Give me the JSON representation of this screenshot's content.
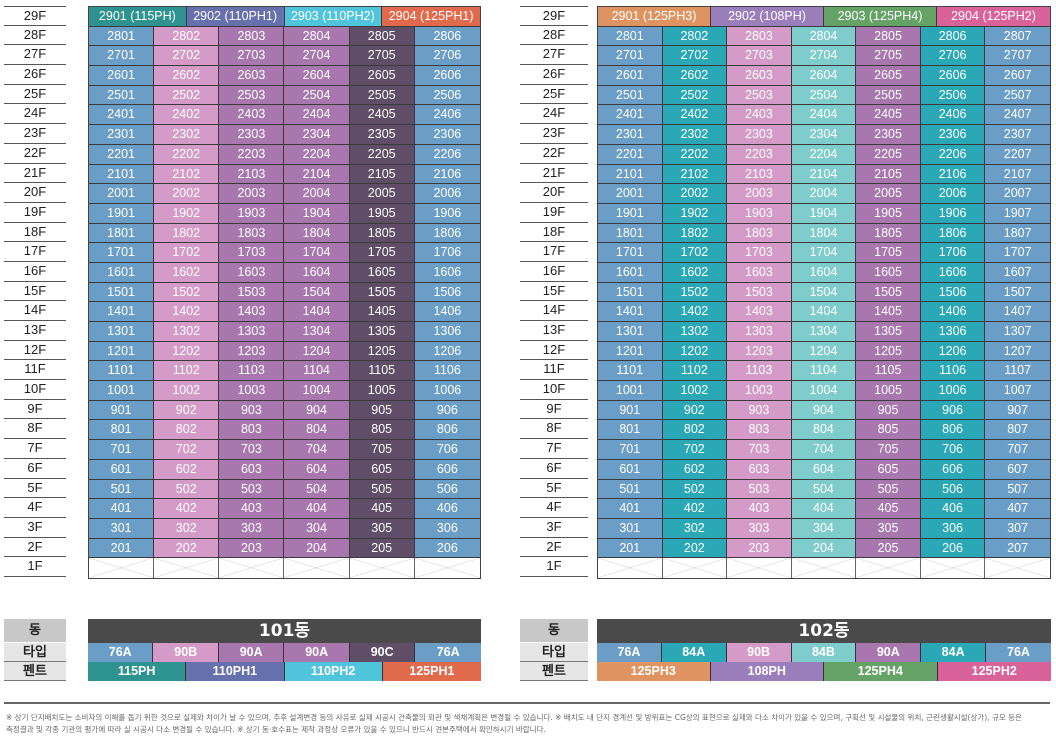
{
  "colors": {
    "76A": "#6a9ec6",
    "90B": "#d49bc8",
    "90A": "#a777ae",
    "90C": "#604d68",
    "84A": "#2aa8b6",
    "84B": "#7fcccc",
    "115PH": "#2e9390",
    "110PH1": "#6670ac",
    "110PH2": "#4fc4da",
    "125PH1": "#e26a4c",
    "125PH3": "#de9360",
    "108PH": "#9a7ebc",
    "125PH4": "#64a266",
    "125PH2": "#d9629a",
    "building_header": "#4a4a4a"
  },
  "floor_labels": [
    "29F",
    "28F",
    "27F",
    "26F",
    "25F",
    "24F",
    "23F",
    "22F",
    "21F",
    "20F",
    "19F",
    "18F",
    "17F",
    "16F",
    "15F",
    "14F",
    "13F",
    "12F",
    "11F",
    "10F",
    "9F",
    "8F",
    "7F",
    "6F",
    "5F",
    "4F",
    "3F",
    "2F",
    "1F"
  ],
  "buildings": [
    {
      "name": "101동",
      "unit_types": [
        "76A",
        "90B",
        "90A",
        "90A",
        "90C",
        "76A"
      ],
      "penthouses": [
        {
          "label": "2901 (115PH)",
          "type": "115PH"
        },
        {
          "label": "2902 (110PH1)",
          "type": "110PH1"
        },
        {
          "label": "2903 (110PH2)",
          "type": "110PH2"
        },
        {
          "label": "2904 (125PH1)",
          "type": "125PH1"
        }
      ]
    },
    {
      "name": "102동",
      "unit_types": [
        "76A",
        "84A",
        "90B",
        "84B",
        "90A",
        "84A",
        "76A"
      ],
      "penthouses": [
        {
          "label": "2901 (125PH3)",
          "type": "125PH3"
        },
        {
          "label": "2902 (108PH)",
          "type": "108PH"
        },
        {
          "label": "2903 (125PH4)",
          "type": "125PH4"
        },
        {
          "label": "2904 (125PH2)",
          "type": "125PH2"
        }
      ]
    }
  ],
  "legend": {
    "row_labels": {
      "building": "동",
      "type": "타입",
      "penthouse": "펜트"
    },
    "penthouse_row_101": [
      "115PH",
      "110PH1",
      "110PH2",
      "125PH1"
    ],
    "penthouse_row_102": [
      "125PH3",
      "108PH",
      "125PH4",
      "125PH2"
    ]
  },
  "notes": [
    "※ 상기 단지배치도는 소비자의 이해를 돕기 위한 것으로 실제와 차이가 날 수 있으며, 추후 설계변경 등의 사유로 실제 시공시 건축물의 외관 및 색채계획은 변경될 수 있습니다. ※ 배치도 내 단지 경계선 및 방위표는 CG상의 표현으로 실제와 다소 차이가 있을 수 있으며, 구획선 및 시설물의 위치, 근린생활시설(상가), 규모 등은",
    "측정결과 및 각종 기관의 평가에 따라 실 시공시 다소 변경될 수 있습니다. ※ 상기 동·호수표는 제작 과정상 오류가 있을 수 있으니 반드시 견본주택에서 확인하시기 바랍니다."
  ]
}
